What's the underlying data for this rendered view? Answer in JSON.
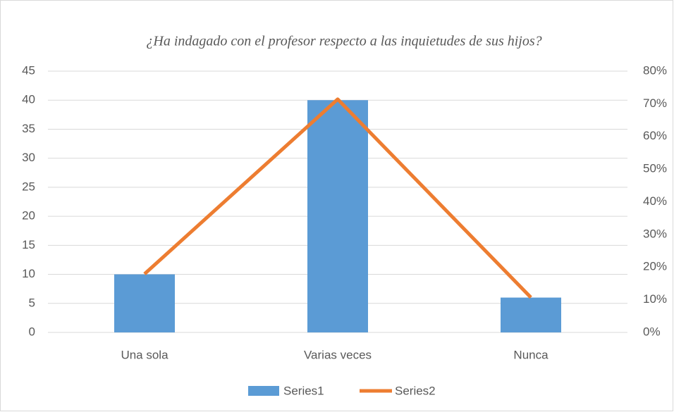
{
  "chart_data": {
    "type": "bar",
    "title": "¿Ha indagado con el profesor respecto a las inquietudes de sus hijos?",
    "categories": [
      "Una sola",
      "Varias veces",
      "Nunca"
    ],
    "series": [
      {
        "name": "Series1",
        "type": "bar",
        "color": "#5b9bd5",
        "values": [
          10,
          40,
          6
        ]
      },
      {
        "name": "Series2",
        "type": "line",
        "axis": "y2",
        "color": "#ed7d31",
        "values": [
          17.9,
          71.4,
          10.7
        ]
      }
    ],
    "ylim": [
      0,
      45
    ],
    "yticks": [
      0,
      5,
      10,
      15,
      20,
      25,
      30,
      35,
      40,
      45
    ],
    "y2lim": [
      0,
      80
    ],
    "y2ticks": [
      {
        "value": 0,
        "label": "0%"
      },
      {
        "value": 10,
        "label": "10%"
      },
      {
        "value": 20,
        "label": "20%"
      },
      {
        "value": 30,
        "label": "30%"
      },
      {
        "value": 40,
        "label": "40%"
      },
      {
        "value": 50,
        "label": "50%"
      },
      {
        "value": 60,
        "label": "60%"
      },
      {
        "value": 70,
        "label": "70%"
      },
      {
        "value": 80,
        "label": "80%"
      }
    ],
    "grid": true,
    "legend": "bottom"
  }
}
